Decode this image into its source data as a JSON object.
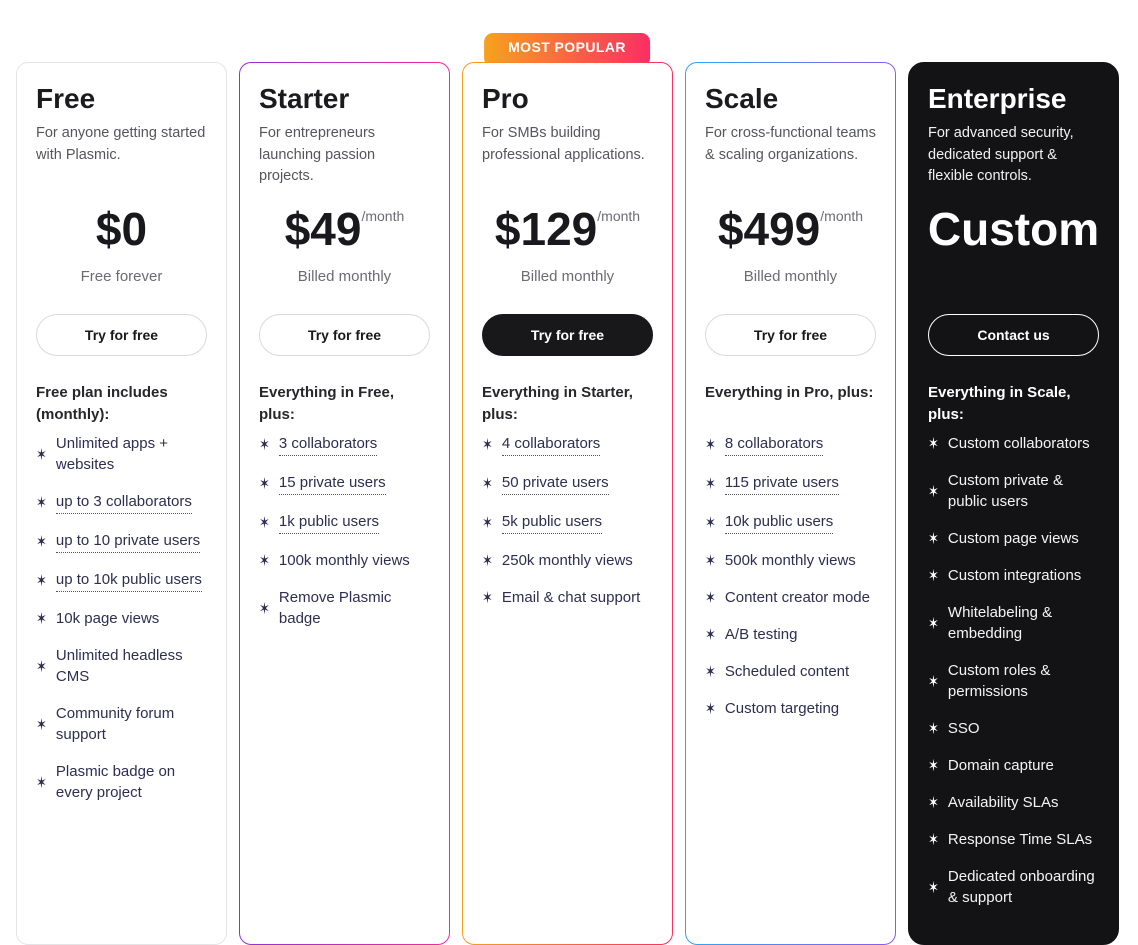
{
  "badge": {
    "label": "MOST POPULAR",
    "gradient": [
      "#f6a21c",
      "#fa2e63"
    ]
  },
  "colors": {
    "plain_border": "#e4e4e7",
    "dark_card_bg": "#131316",
    "feature_text": "#2f2d51"
  },
  "plans": [
    {
      "name": "Free",
      "description": "For anyone getting started with Plasmic.",
      "price": "$0",
      "price_suffix": "",
      "billing_note": "Free forever",
      "cta_label": "Try for free",
      "cta_style": "outline",
      "accent": null,
      "dark": false,
      "popular": false,
      "includes_header": "Free plan includes (monthly):",
      "features": [
        {
          "text": "Unlimited apps + websites",
          "tooltip": false
        },
        {
          "text": "up to 3 collaborators",
          "tooltip": true
        },
        {
          "text": "up to 10 private users",
          "tooltip": true
        },
        {
          "text": "up to 10k public users",
          "tooltip": true
        },
        {
          "text": "10k page views",
          "tooltip": false
        },
        {
          "text": "Unlimited headless CMS",
          "tooltip": false
        },
        {
          "text": "Community forum support",
          "tooltip": false
        },
        {
          "text": "Plasmic badge on every project",
          "tooltip": false
        }
      ]
    },
    {
      "name": "Starter",
      "description": "For entrepreneurs launching passion projects.",
      "price": "$49",
      "price_suffix": "/month",
      "billing_note": "Billed monthly",
      "cta_label": "Try for free",
      "cta_style": "outline",
      "accent": [
        "#9130d9",
        "#f02a9b"
      ],
      "dark": false,
      "popular": false,
      "includes_header": "Everything in Free, plus:",
      "features": [
        {
          "text": "3 collaborators",
          "tooltip": true
        },
        {
          "text": "15 private users",
          "tooltip": true
        },
        {
          "text": "1k public users",
          "tooltip": true
        },
        {
          "text": "100k monthly views",
          "tooltip": false
        },
        {
          "text": "Remove Plasmic badge",
          "tooltip": false
        }
      ]
    },
    {
      "name": "Pro",
      "description": "For SMBs building professional applications.",
      "price": "$129",
      "price_suffix": "/month",
      "billing_note": "Billed monthly",
      "cta_label": "Try for free",
      "cta_style": "solid-dark",
      "accent": [
        "#f4a21c",
        "#f92e62"
      ],
      "dark": false,
      "popular": true,
      "includes_header": "Everything in Starter, plus:",
      "features": [
        {
          "text": "4 collaborators",
          "tooltip": true
        },
        {
          "text": "50 private users",
          "tooltip": true
        },
        {
          "text": "5k public users",
          "tooltip": true
        },
        {
          "text": "250k monthly views",
          "tooltip": false
        },
        {
          "text": "Email & chat support",
          "tooltip": false
        }
      ]
    },
    {
      "name": "Scale",
      "description": "For cross-functional teams & scaling organizations.",
      "price": "$499",
      "price_suffix": "/month",
      "billing_note": "Billed monthly",
      "cta_label": "Try for free",
      "cta_style": "outline",
      "accent": [
        "#2aa7f5",
        "#8d57f4"
      ],
      "dark": false,
      "popular": false,
      "includes_header": "Everything in Pro, plus:",
      "features": [
        {
          "text": "8 collaborators",
          "tooltip": true
        },
        {
          "text": "115 private users",
          "tooltip": true
        },
        {
          "text": "10k public users",
          "tooltip": true
        },
        {
          "text": "500k monthly views",
          "tooltip": false
        },
        {
          "text": "Content creator mode",
          "tooltip": false
        },
        {
          "text": "A/B testing",
          "tooltip": false
        },
        {
          "text": "Scheduled content",
          "tooltip": false
        },
        {
          "text": "Custom targeting",
          "tooltip": false
        }
      ]
    },
    {
      "name": "Enterprise",
      "description": "For advanced security, dedicated support & flexible controls.",
      "price": "Custom",
      "price_suffix": "",
      "billing_note": "",
      "cta_label": "Contact us",
      "cta_style": "outline-light",
      "accent": null,
      "dark": true,
      "popular": false,
      "includes_header": "Everything in Scale, plus:",
      "features": [
        {
          "text": "Custom collaborators",
          "tooltip": false
        },
        {
          "text": "Custom private & public users",
          "tooltip": false
        },
        {
          "text": "Custom page views",
          "tooltip": false
        },
        {
          "text": "Custom integrations",
          "tooltip": false
        },
        {
          "text": "Whitelabeling & embedding",
          "tooltip": false
        },
        {
          "text": "Custom roles & permissions",
          "tooltip": false
        },
        {
          "text": "SSO",
          "tooltip": false
        },
        {
          "text": "Domain capture",
          "tooltip": false
        },
        {
          "text": "Availability SLAs",
          "tooltip": false
        },
        {
          "text": "Response Time SLAs",
          "tooltip": false
        },
        {
          "text": "Dedicated onboarding & support",
          "tooltip": false
        }
      ]
    }
  ]
}
